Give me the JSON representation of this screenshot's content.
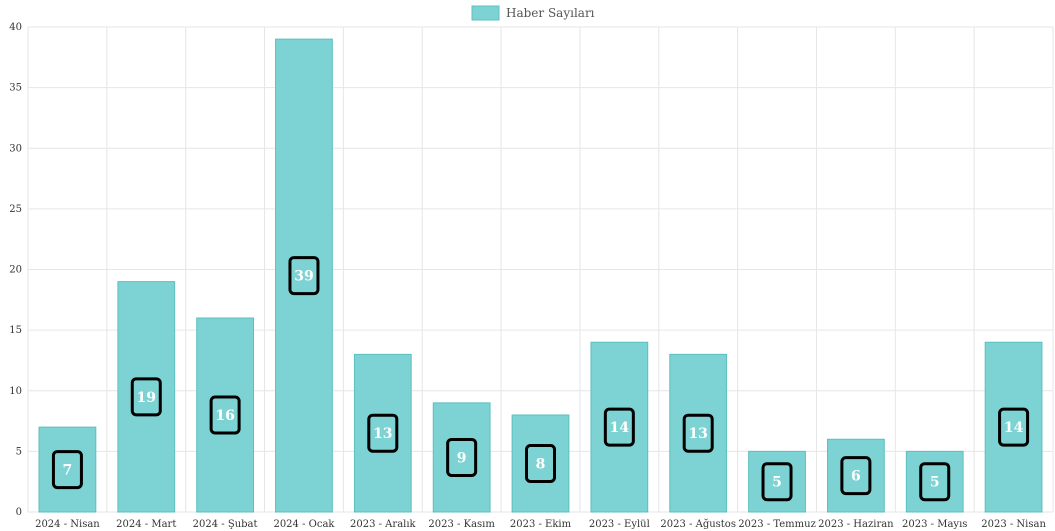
{
  "chart_data": {
    "type": "bar",
    "categories": [
      "2024 - Nisan",
      "2024 - Mart",
      "2024 - Şubat",
      "2024 - Ocak",
      "2023 - Aralık",
      "2023 - Kasım",
      "2023 - Ekim",
      "2023 - Eylül",
      "2023 - Ağustos",
      "2023 - Temmuz",
      "2023 - Haziran",
      "2023 - Mayıs",
      "2023 - Nisan"
    ],
    "series": [
      {
        "name": "Haber Sayıları",
        "values": [
          7,
          19,
          16,
          39,
          13,
          9,
          8,
          14,
          13,
          5,
          6,
          5,
          14
        ]
      }
    ],
    "ylim": [
      0,
      40
    ],
    "yticks": [
      0,
      5,
      10,
      15,
      20,
      25,
      30,
      35,
      40
    ],
    "grid": true,
    "legend_position": "top-center",
    "bar_color": "#7dd3d3",
    "bar_border_color": "#5cbfbf"
  }
}
